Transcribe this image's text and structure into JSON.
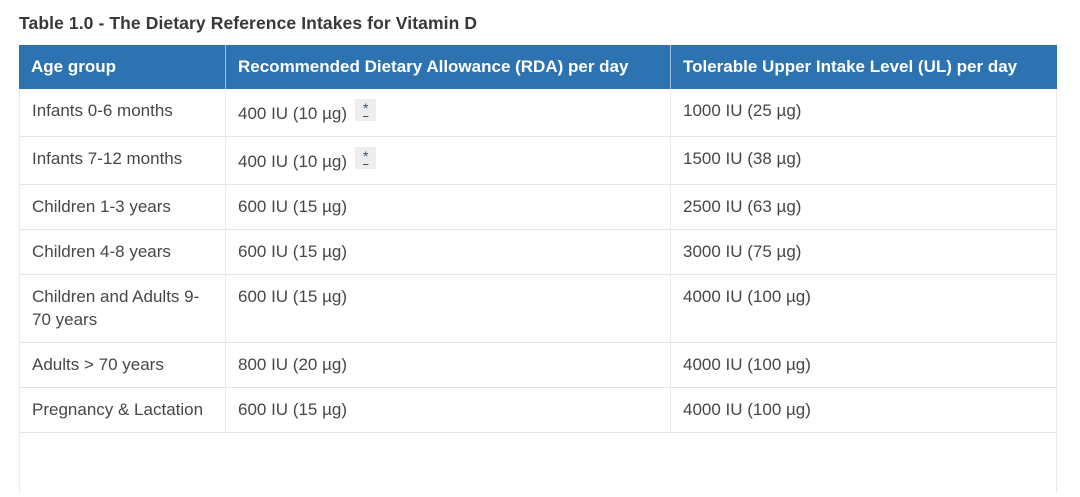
{
  "table": {
    "title": "Table 1.0 - The Dietary Reference Intakes for Vitamin D",
    "columns": [
      "Age group",
      "Recommended Dietary Allowance (RDA) per day",
      "Tolerable Upper Intake Level (UL) per day"
    ],
    "rows": [
      {
        "age_group": "Infants 0-6 months",
        "rda": "400 IU (10 µg)",
        "rda_footnote": "*",
        "ul": "1000 IU (25 µg)"
      },
      {
        "age_group": "Infants 7-12 months",
        "rda": "400 IU (10 µg)",
        "rda_footnote": "*",
        "ul": "1500 IU (38 µg)"
      },
      {
        "age_group": "Children 1-3 years",
        "rda": "600 IU (15 µg)",
        "rda_footnote": "",
        "ul": "2500 IU (63 µg)"
      },
      {
        "age_group": "Children 4-8 years",
        "rda": "600 IU (15 µg)",
        "rda_footnote": "",
        "ul": "3000 IU (75 µg)"
      },
      {
        "age_group": "Children and Adults 9-70 years",
        "rda": "600 IU (15 µg)",
        "rda_footnote": "",
        "ul": "4000 IU (100 µg)"
      },
      {
        "age_group": "Adults > 70 years",
        "rda": "800 IU (20 µg)",
        "rda_footnote": "",
        "ul": "4000 IU (100 µg)"
      },
      {
        "age_group": "Pregnancy & Lactation",
        "rda": "600 IU (15 µg)",
        "rda_footnote": "",
        "ul": "4000 IU (100 µg)"
      }
    ],
    "colors": {
      "header_background": "#2d73b2",
      "header_text": "#ffffff",
      "title_text": "#383838",
      "body_text": "#474747",
      "row_border": "#e4e4e4",
      "footnote_background": "#ededed",
      "footnote_text": "#3b536b"
    }
  }
}
